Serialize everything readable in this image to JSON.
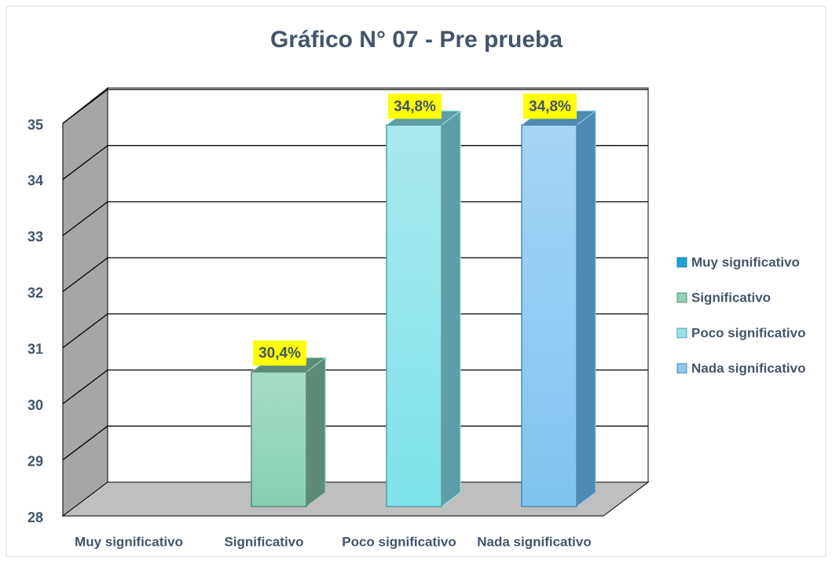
{
  "chart_data": {
    "type": "bar3d",
    "title": "Gráfico N° 07 - Pre prueba",
    "categories": [
      "Muy significativo",
      "Significativo",
      "Poco significativo",
      "Nada significativo"
    ],
    "values": [
      null,
      30.4,
      34.8,
      34.8
    ],
    "value_labels": [
      null,
      "30,4%",
      "34,8%",
      "34,8%"
    ],
    "colors": [
      "#1fa0d8",
      "#8fd4b4",
      "#8fe6ec",
      "#8fc8f0"
    ],
    "ylim": [
      28,
      35
    ],
    "yticks": [
      28,
      29,
      30,
      31,
      32,
      33,
      34,
      35
    ],
    "grid": true,
    "legend": "right"
  }
}
